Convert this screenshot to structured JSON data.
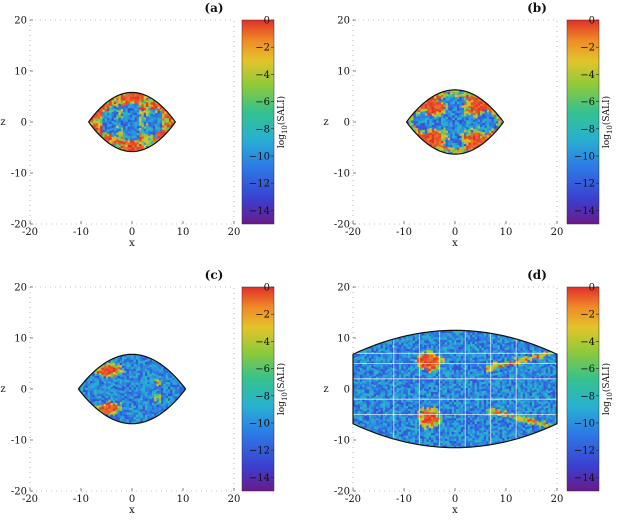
{
  "figure": {
    "caption": ""
  },
  "chart_data": [
    {
      "type": "heatmap",
      "panel_label": "(a)",
      "xlabel": "x",
      "ylabel": "z",
      "xlim": [
        -20,
        20
      ],
      "ylim": [
        -20,
        20
      ],
      "xticks": [
        -20,
        -10,
        0,
        10,
        20
      ],
      "yticks": [
        -20,
        -10,
        0,
        10,
        20
      ],
      "region": {
        "shape": "lens",
        "x_extent": [
          -8.5,
          8.5
        ],
        "z_half_height": 5.8
      },
      "colorbar": {
        "label": "log10(SALI)",
        "min": -15,
        "max": 0,
        "ticks": [
          0,
          -2,
          -4,
          -6,
          -8,
          -10,
          -12,
          -14
        ]
      },
      "dominant": "regular-chaotic mixture, mostly chaotic (red)",
      "chaotic_fraction": 0.6
    },
    {
      "type": "heatmap",
      "panel_label": "(b)",
      "xlabel": "x",
      "ylabel": "z",
      "xlim": [
        -20,
        20
      ],
      "ylim": [
        -20,
        20
      ],
      "xticks": [
        -20,
        -10,
        0,
        10,
        20
      ],
      "yticks": [
        -20,
        -10,
        0,
        10,
        20
      ],
      "region": {
        "shape": "lens",
        "x_extent": [
          -9.5,
          9.5
        ],
        "z_half_height": 6.3
      },
      "colorbar": {
        "label": "log10(SALI)",
        "min": -15,
        "max": 0,
        "ticks": [
          0,
          -2,
          -4,
          -6,
          -8,
          -10,
          -12,
          -14
        ]
      },
      "dominant": "mixed, regular core (blue) with chaotic lobes",
      "chaotic_fraction": 0.45
    },
    {
      "type": "heatmap",
      "panel_label": "(c)",
      "xlabel": "x",
      "ylabel": "z",
      "xlim": [
        -20,
        20
      ],
      "ylim": [
        -20,
        20
      ],
      "xticks": [
        -20,
        -10,
        0,
        10,
        20
      ],
      "yticks": [
        -20,
        -10,
        0,
        10,
        20
      ],
      "region": {
        "shape": "lens",
        "x_extent": [
          -10.5,
          10.5
        ],
        "z_half_height": 6.8
      },
      "colorbar": {
        "label": "log10(SALI)",
        "min": -15,
        "max": 0,
        "ticks": [
          0,
          -2,
          -4,
          -6,
          -8,
          -10,
          -12,
          -14
        ]
      },
      "dominant": "mostly regular (blue) with chaotic lobes near x=-5",
      "chaotic_fraction": 0.25
    },
    {
      "type": "heatmap",
      "panel_label": "(d)",
      "xlabel": "x",
      "ylabel": "z",
      "xlim": [
        -20,
        20
      ],
      "ylim": [
        -20,
        20
      ],
      "xticks": [
        -20,
        -10,
        0,
        10,
        20
      ],
      "yticks": [
        -20,
        -10,
        0,
        10,
        20
      ],
      "region": {
        "shape": "waist",
        "x_extent": [
          -20,
          20
        ],
        "z_half_height_center": 11.5,
        "z_half_height_edge": 6.8
      },
      "colorbar": {
        "label": "log10(SALI)",
        "min": -15,
        "max": 0,
        "ticks": [
          0,
          -2,
          -4,
          -6,
          -8,
          -10,
          -12,
          -14
        ]
      },
      "dominant": "mostly regular (blue) with chaotic islands near x=-5, z=±5",
      "chaotic_fraction": 0.15
    }
  ],
  "colors": {
    "scale": [
      "#5a1e8c",
      "#3a3fd0",
      "#2f7be3",
      "#2bb5c8",
      "#39c28c",
      "#8ccc3c",
      "#e6c32a",
      "#f08a28",
      "#e23b2a"
    ],
    "outline": "#111111"
  }
}
